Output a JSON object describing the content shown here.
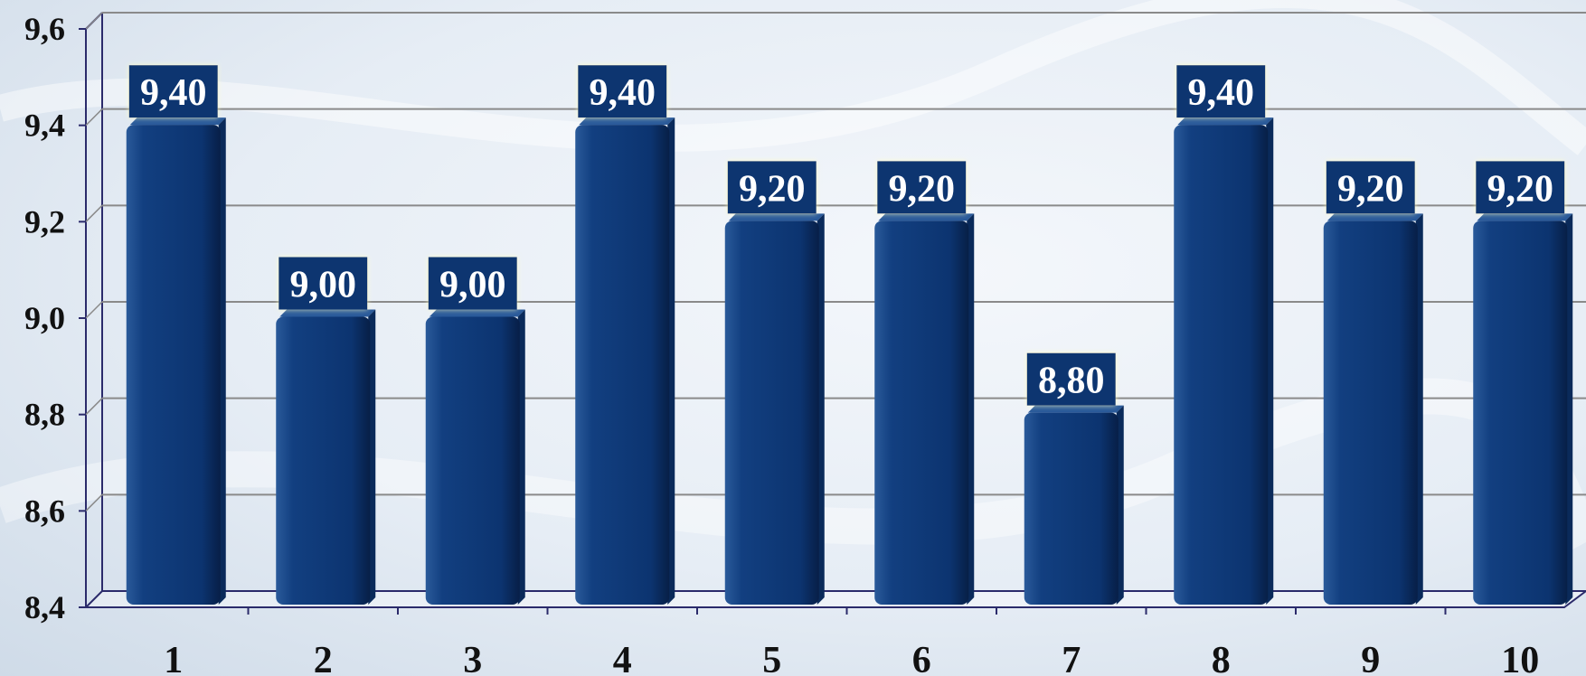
{
  "colors": {
    "bar": "#0f3a78",
    "bar_dark": "#0a2a5a",
    "bar_light": "#2a5a9a",
    "label_bg": "#0c3470",
    "grid": "#8a8a8a",
    "axis": "#2b2b6b"
  },
  "chart_data": {
    "type": "bar",
    "title": "",
    "xlabel": "",
    "ylabel": "",
    "categories": [
      "1",
      "2",
      "3",
      "4",
      "5",
      "6",
      "7",
      "8",
      "9",
      "10"
    ],
    "values": [
      9.4,
      9.0,
      9.0,
      9.4,
      9.2,
      9.2,
      8.8,
      9.4,
      9.2,
      9.2
    ],
    "data_labels": [
      "9,40",
      "9,00",
      "9,00",
      "9,40",
      "9,20",
      "9,20",
      "8,80",
      "9,40",
      "9,20",
      "9,20"
    ],
    "ylim": [
      8.4,
      9.6
    ],
    "yticks": [
      8.4,
      8.6,
      8.8,
      9.0,
      9.2,
      9.4,
      9.6
    ],
    "ytick_labels": [
      "8,4",
      "8,6",
      "8,8",
      "9,0",
      "9,2",
      "9,4",
      "9,6"
    ],
    "grid": true,
    "legend": "none"
  }
}
